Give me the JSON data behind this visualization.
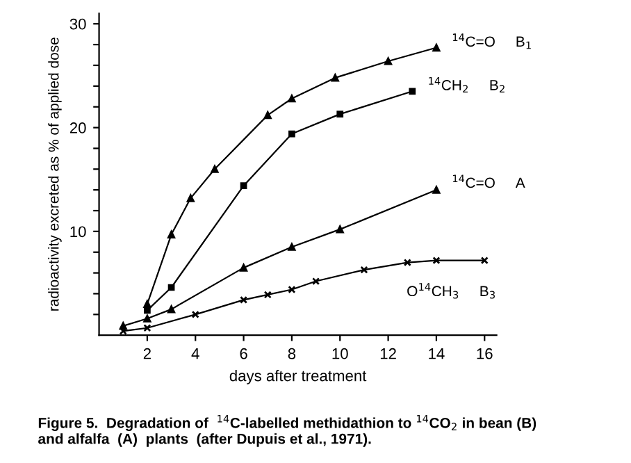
{
  "chart_data": {
    "type": "line",
    "title": "Figure 5.  Degradation of  $^{14}$C-labelled methidathion to $^{14}$CO$_{2}$ in bean (B)\nand alfalfa  (A)  plants  (after Dupuis et al., 1971).",
    "xlabel": "days after treatment",
    "ylabel": "radioactivity excreted as % of applied dose",
    "series": [
      {
        "name": "$^{14}$C=O     B$_{1}$",
        "color": "#000000",
        "marker": "triangle",
        "x": [
          2,
          3,
          3.8,
          4.8,
          7,
          8,
          9.8,
          12,
          14
        ],
        "values": [
          3,
          9.7,
          13.2,
          16,
          21.2,
          22.8,
          24.8,
          26.4,
          27.7
        ]
      },
      {
        "name": "$^{14}$CH$_{2}$     B$_{2}$",
        "color": "#000000",
        "marker": "square",
        "x": [
          2,
          3,
          6,
          8,
          10,
          13
        ],
        "values": [
          2.4,
          4.6,
          14.4,
          19.4,
          21.3,
          23.5
        ]
      },
      {
        "name": "$^{14}$C=O     A",
        "color": "#000000",
        "marker": "triangle",
        "x": [
          1,
          2,
          3,
          6,
          8,
          10,
          14
        ],
        "values": [
          0.9,
          1.6,
          2.5,
          6.5,
          8.5,
          10.2,
          14
        ]
      },
      {
        "name": "O$^{14}$CH$_{3}$     B$_{3}$",
        "color": "#000000",
        "marker": "cross",
        "x": [
          1,
          2,
          4,
          6,
          7,
          8,
          9,
          11,
          12.8,
          14,
          16
        ],
        "values": [
          0.4,
          0.7,
          2,
          3.4,
          3.9,
          4.4,
          5.2,
          6.3,
          7,
          7.2,
          7.2
        ]
      }
    ],
    "xlim": [
      0,
      16.5
    ],
    "ylim": [
      0,
      31
    ],
    "xticks": [
      2,
      4,
      6,
      8,
      10,
      12,
      14,
      16
    ],
    "yticks": [
      {
        "value": 2,
        "label": null
      },
      {
        "value": 4,
        "label": null
      },
      {
        "value": 6,
        "label": null
      },
      {
        "value": 8,
        "label": null
      },
      10,
      {
        "value": 12,
        "label": null
      },
      {
        "value": 14,
        "label": null
      },
      {
        "value": 16,
        "label": null
      },
      {
        "value": 18,
        "label": null
      },
      20,
      {
        "value": 22,
        "label": null
      },
      {
        "value": 24,
        "label": null
      },
      {
        "value": 26,
        "label": null
      },
      {
        "value": 28,
        "label": null
      },
      30
    ],
    "grid": false,
    "line_style": "solid"
  }
}
